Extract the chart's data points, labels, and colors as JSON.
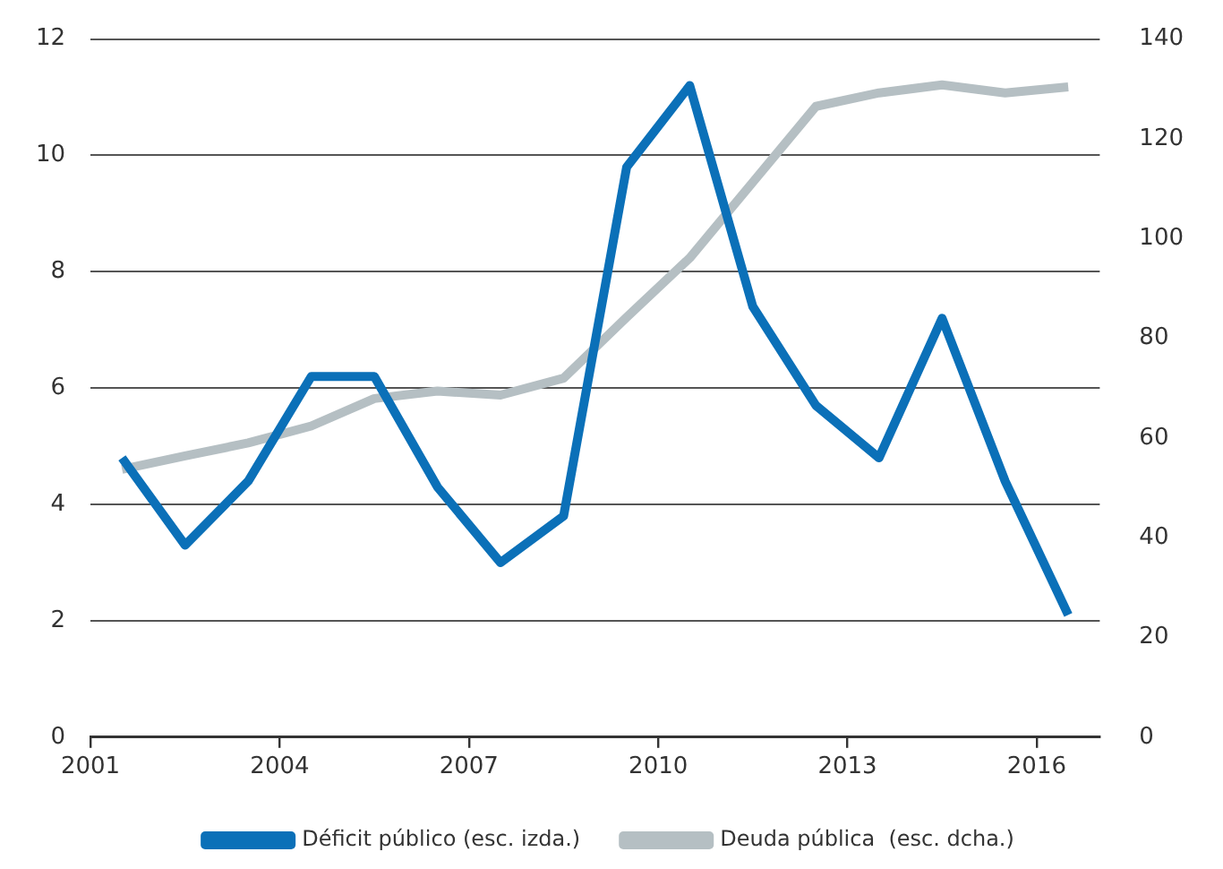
{
  "chart_data": {
    "type": "line",
    "x": [
      2001.5,
      2002.5,
      2003.5,
      2004.5,
      2005.5,
      2006.5,
      2007.5,
      2008.5,
      2009.5,
      2010.5,
      2011.5,
      2012.5,
      2013.5,
      2014.5,
      2015.5,
      2016.5
    ],
    "xlim": [
      2001,
      2017
    ],
    "xticks": [
      2001,
      2004,
      2007,
      2010,
      2013,
      2016
    ],
    "ylim": [
      0,
      12
    ],
    "yticks": [
      0,
      2,
      4,
      6,
      8,
      10,
      12
    ],
    "y2lim": [
      0,
      140
    ],
    "y2ticks": [
      0,
      20,
      40,
      60,
      80,
      100,
      120,
      140
    ],
    "grid": "y",
    "legend": "bottom",
    "marker": "none",
    "line_style": "solid",
    "series": [
      {
        "name": "Déficit público (esc. izda.)",
        "color": "#0b70b8",
        "values": [
          4.8,
          3.3,
          4.4,
          6.2,
          6.2,
          4.3,
          3.0,
          3.8,
          9.8,
          11.2,
          7.4,
          5.7,
          4.8,
          7.2,
          4.4,
          2.1
        ]
      },
      {
        "name": "Deuda pública  (esc. dcha.)",
        "color": "#b5bfc3",
        "axis": "y2",
        "values": [
          53.7,
          56.4,
          59.0,
          62.4,
          67.9,
          69.4,
          68.6,
          72.0,
          84.2,
          96.1,
          111.3,
          126.5,
          129.2,
          130.8,
          129.2,
          130.4
        ]
      }
    ]
  }
}
